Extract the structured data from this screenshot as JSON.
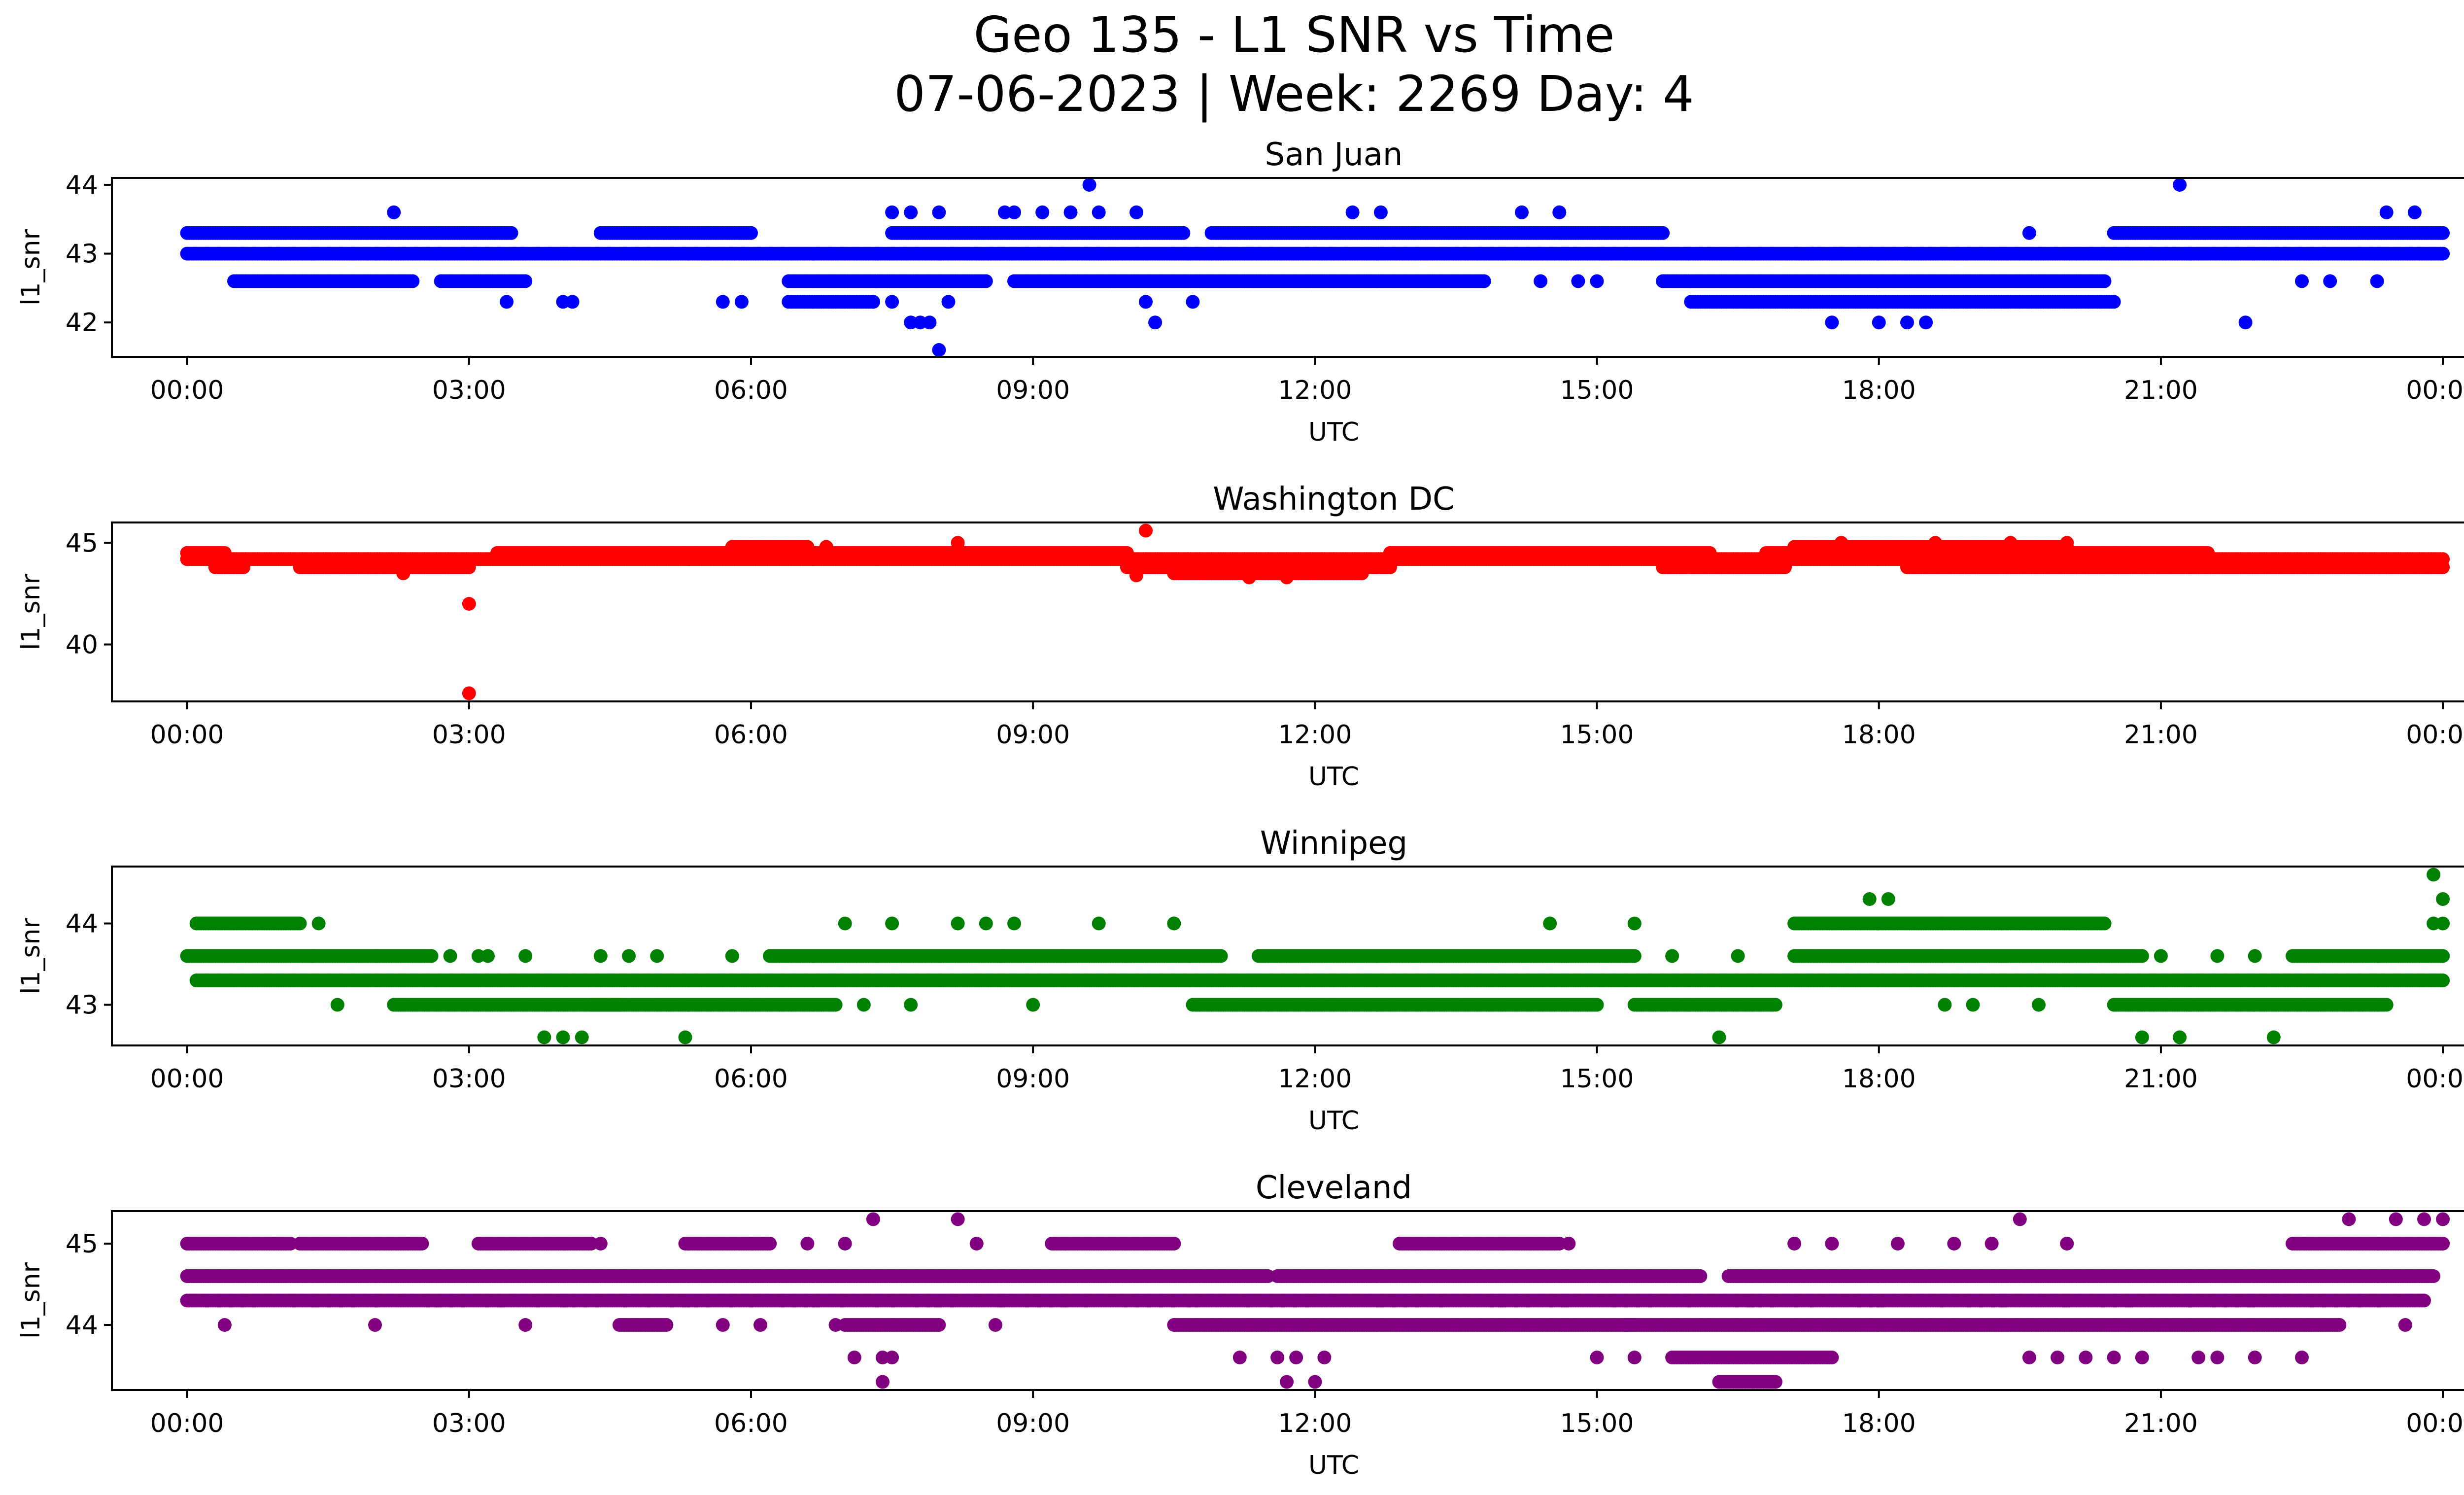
{
  "title_line1": "Geo 135 - L1 SNR vs Time",
  "title_line2": "07-06-2023 | Week: 2269 Day: 4",
  "chart_data": [
    {
      "type": "scatter",
      "title": "San Juan",
      "xlabel": "UTC",
      "ylabel": "l1_snr",
      "color": "#0000ff",
      "xlim": [
        -0.8,
        25.2
      ],
      "ylim": [
        41.5,
        44.1
      ],
      "xticks": [
        0,
        3,
        6,
        9,
        12,
        15,
        18,
        21,
        24
      ],
      "xticklabels": [
        "00:00",
        "03:00",
        "06:00",
        "09:00",
        "12:00",
        "15:00",
        "18:00",
        "21:00",
        "00:00"
      ],
      "yticks": [
        42,
        43,
        44
      ],
      "yticklabels": [
        "42",
        "43",
        "44"
      ],
      "bands": [
        {
          "y": 43.0,
          "from": 0.0,
          "to": 24.0
        },
        {
          "y": 43.3,
          "from": 0.0,
          "to": 3.45
        },
        {
          "y": 43.3,
          "from": 4.4,
          "to": 6.0
        },
        {
          "y": 43.3,
          "from": 7.5,
          "to": 10.6
        },
        {
          "y": 43.3,
          "from": 10.9,
          "to": 15.7
        },
        {
          "y": 43.3,
          "from": 20.5,
          "to": 24.0
        },
        {
          "y": 42.6,
          "from": 0.5,
          "to": 2.4
        },
        {
          "y": 42.6,
          "from": 2.7,
          "to": 3.6
        },
        {
          "y": 42.6,
          "from": 6.4,
          "to": 8.5
        },
        {
          "y": 42.6,
          "from": 8.8,
          "to": 13.8
        },
        {
          "y": 42.6,
          "from": 15.7,
          "to": 20.4
        },
        {
          "y": 42.3,
          "from": 6.4,
          "to": 7.3
        },
        {
          "y": 42.3,
          "from": 16.0,
          "to": 20.5
        }
      ],
      "points": [
        [
          2.2,
          43.6
        ],
        [
          3.4,
          42.3
        ],
        [
          4.0,
          42.3
        ],
        [
          4.1,
          42.3
        ],
        [
          5.7,
          42.3
        ],
        [
          5.9,
          42.3
        ],
        [
          7.3,
          42.3
        ],
        [
          7.5,
          42.3
        ],
        [
          7.7,
          42.0
        ],
        [
          7.8,
          42.0
        ],
        [
          7.9,
          42.0
        ],
        [
          8.0,
          41.6
        ],
        [
          8.1,
          42.3
        ],
        [
          7.5,
          43.6
        ],
        [
          7.7,
          43.6
        ],
        [
          8.0,
          43.6
        ],
        [
          8.7,
          43.6
        ],
        [
          8.8,
          43.6
        ],
        [
          9.1,
          43.6
        ],
        [
          9.4,
          43.6
        ],
        [
          9.6,
          44.0
        ],
        [
          9.7,
          43.6
        ],
        [
          10.1,
          43.6
        ],
        [
          10.2,
          42.3
        ],
        [
          10.3,
          42.0
        ],
        [
          10.7,
          42.3
        ],
        [
          12.4,
          43.6
        ],
        [
          12.7,
          43.6
        ],
        [
          14.2,
          43.6
        ],
        [
          14.6,
          43.6
        ],
        [
          14.4,
          42.6
        ],
        [
          14.8,
          42.6
        ],
        [
          15.0,
          42.6
        ],
        [
          17.3,
          43.0
        ],
        [
          17.5,
          42.0
        ],
        [
          17.6,
          43.0
        ],
        [
          18.0,
          42.0
        ],
        [
          18.3,
          43.0
        ],
        [
          18.3,
          42.0
        ],
        [
          18.5,
          42.0
        ],
        [
          19.6,
          43.3
        ],
        [
          21.2,
          44.0
        ],
        [
          21.9,
          42.0
        ],
        [
          22.5,
          42.6
        ],
        [
          22.8,
          42.6
        ],
        [
          23.3,
          42.6
        ],
        [
          23.4,
          43.6
        ],
        [
          23.7,
          43.6
        ]
      ]
    },
    {
      "type": "scatter",
      "title": "Washington DC",
      "xlabel": "UTC",
      "ylabel": "l1_snr",
      "color": "#ff0000",
      "xlim": [
        -0.8,
        25.2
      ],
      "ylim": [
        37.2,
        46.0
      ],
      "xticks": [
        0,
        3,
        6,
        9,
        12,
        15,
        18,
        21,
        24
      ],
      "xticklabels": [
        "00:00",
        "03:00",
        "06:00",
        "09:00",
        "12:00",
        "15:00",
        "18:00",
        "21:00",
        "00:00"
      ],
      "yticks": [
        40,
        45
      ],
      "yticklabels": [
        "40",
        "45"
      ],
      "bands": [
        {
          "y": 44.5,
          "from": 0.0,
          "to": 0.4
        },
        {
          "y": 44.2,
          "from": 0.0,
          "to": 24.0
        },
        {
          "y": 43.8,
          "from": 0.3,
          "to": 0.6
        },
        {
          "y": 43.8,
          "from": 1.2,
          "to": 3.0
        },
        {
          "y": 44.5,
          "from": 3.3,
          "to": 10.0
        },
        {
          "y": 44.8,
          "from": 5.8,
          "to": 6.6
        },
        {
          "y": 43.8,
          "from": 10.0,
          "to": 12.8
        },
        {
          "y": 43.5,
          "from": 10.5,
          "to": 12.5
        },
        {
          "y": 44.5,
          "from": 12.8,
          "to": 16.2
        },
        {
          "y": 43.8,
          "from": 15.7,
          "to": 17.0
        },
        {
          "y": 44.5,
          "from": 16.8,
          "to": 21.5
        },
        {
          "y": 44.8,
          "from": 17.1,
          "to": 20.0
        },
        {
          "y": 43.8,
          "from": 18.3,
          "to": 24.0
        }
      ],
      "points": [
        [
          2.3,
          43.5
        ],
        [
          3.0,
          42.0
        ],
        [
          3.0,
          37.6
        ],
        [
          10.2,
          45.6
        ],
        [
          10.1,
          43.4
        ],
        [
          11.3,
          43.3
        ],
        [
          11.7,
          43.3
        ],
        [
          6.8,
          44.8
        ],
        [
          8.2,
          45.0
        ],
        [
          17.6,
          45.0
        ],
        [
          18.6,
          45.0
        ],
        [
          19.4,
          45.0
        ],
        [
          20.0,
          45.0
        ]
      ]
    },
    {
      "type": "scatter",
      "title": "Winnipeg",
      "xlabel": "UTC",
      "ylabel": "l1_snr",
      "color": "#008000",
      "xlim": [
        -0.8,
        25.2
      ],
      "ylim": [
        42.5,
        44.7
      ],
      "xticks": [
        0,
        3,
        6,
        9,
        12,
        15,
        18,
        21,
        24
      ],
      "xticklabels": [
        "00:00",
        "03:00",
        "06:00",
        "09:00",
        "12:00",
        "15:00",
        "18:00",
        "21:00",
        "00:00"
      ],
      "yticks": [
        43,
        44
      ],
      "yticklabels": [
        "43",
        "44"
      ],
      "bands": [
        {
          "y": 43.6,
          "from": 0.0,
          "to": 2.6
        },
        {
          "y": 43.3,
          "from": 0.1,
          "to": 24.0
        },
        {
          "y": 44.0,
          "from": 0.1,
          "to": 1.2
        },
        {
          "y": 43.0,
          "from": 2.2,
          "to": 4.6
        },
        {
          "y": 43.0,
          "from": 4.3,
          "to": 6.9
        },
        {
          "y": 43.6,
          "from": 6.2,
          "to": 11.0
        },
        {
          "y": 43.6,
          "from": 11.4,
          "to": 15.4
        },
        {
          "y": 43.0,
          "from": 10.7,
          "to": 15.0
        },
        {
          "y": 43.0,
          "from": 15.4,
          "to": 16.9
        },
        {
          "y": 43.6,
          "from": 17.1,
          "to": 20.8
        },
        {
          "y": 44.0,
          "from": 17.1,
          "to": 20.4
        },
        {
          "y": 43.0,
          "from": 20.5,
          "to": 23.4
        },
        {
          "y": 43.6,
          "from": 22.4,
          "to": 24.0
        }
      ],
      "points": [
        [
          1.4,
          44.0
        ],
        [
          1.6,
          43.0
        ],
        [
          2.8,
          43.6
        ],
        [
          3.1,
          43.6
        ],
        [
          3.6,
          43.6
        ],
        [
          3.2,
          43.6
        ],
        [
          3.8,
          42.6
        ],
        [
          4.0,
          42.6
        ],
        [
          4.2,
          42.6
        ],
        [
          4.4,
          43.6
        ],
        [
          4.7,
          43.6
        ],
        [
          5.0,
          43.6
        ],
        [
          5.3,
          42.6
        ],
        [
          5.8,
          43.6
        ],
        [
          7.0,
          44.0
        ],
        [
          7.2,
          43.0
        ],
        [
          7.5,
          44.0
        ],
        [
          7.7,
          43.0
        ],
        [
          8.2,
          44.0
        ],
        [
          8.5,
          44.0
        ],
        [
          8.8,
          44.0
        ],
        [
          9.0,
          43.0
        ],
        [
          9.7,
          44.0
        ],
        [
          10.5,
          44.0
        ],
        [
          14.5,
          44.0
        ],
        [
          15.4,
          44.0
        ],
        [
          15.8,
          43.6
        ],
        [
          16.3,
          42.6
        ],
        [
          16.5,
          43.6
        ],
        [
          17.9,
          44.3
        ],
        [
          18.1,
          44.3
        ],
        [
          18.7,
          43.0
        ],
        [
          19.0,
          43.0
        ],
        [
          19.7,
          43.0
        ],
        [
          20.8,
          42.6
        ],
        [
          21.0,
          43.6
        ],
        [
          21.2,
          42.6
        ],
        [
          21.6,
          43.6
        ],
        [
          22.0,
          43.6
        ],
        [
          22.2,
          42.6
        ],
        [
          23.9,
          44.6
        ],
        [
          24.0,
          44.3
        ],
        [
          24.0,
          44.0
        ],
        [
          23.9,
          44.0
        ]
      ]
    },
    {
      "type": "scatter",
      "title": "Cleveland",
      "xlabel": "UTC",
      "ylabel": "l1_snr",
      "color": "#800080",
      "xlim": [
        -0.8,
        25.2
      ],
      "ylim": [
        43.2,
        45.4
      ],
      "xticks": [
        0,
        3,
        6,
        9,
        12,
        15,
        18,
        21,
        24
      ],
      "xticklabels": [
        "00:00",
        "03:00",
        "06:00",
        "09:00",
        "12:00",
        "15:00",
        "18:00",
        "21:00",
        "00:00"
      ],
      "yticks": [
        44,
        45
      ],
      "yticklabels": [
        "44",
        "45"
      ],
      "bands": [
        {
          "y": 44.6,
          "from": 0.0,
          "to": 11.5
        },
        {
          "y": 44.6,
          "from": 11.6,
          "to": 16.1
        },
        {
          "y": 44.6,
          "from": 16.4,
          "to": 23.9
        },
        {
          "y": 44.3,
          "from": 0.0,
          "to": 23.8
        },
        {
          "y": 45.0,
          "from": 0.0,
          "to": 1.1
        },
        {
          "y": 45.0,
          "from": 1.2,
          "to": 2.5
        },
        {
          "y": 45.0,
          "from": 3.1,
          "to": 4.3
        },
        {
          "y": 45.0,
          "from": 5.3,
          "to": 6.2
        },
        {
          "y": 45.0,
          "from": 9.2,
          "to": 10.5
        },
        {
          "y": 45.0,
          "from": 12.9,
          "to": 14.6
        },
        {
          "y": 45.0,
          "from": 22.4,
          "to": 24.0
        },
        {
          "y": 44.0,
          "from": 4.6,
          "to": 5.1
        },
        {
          "y": 44.0,
          "from": 7.0,
          "to": 8.0
        },
        {
          "y": 44.0,
          "from": 10.5,
          "to": 15.4
        },
        {
          "y": 44.0,
          "from": 15.3,
          "to": 22.9
        },
        {
          "y": 43.6,
          "from": 15.8,
          "to": 17.5
        },
        {
          "y": 43.3,
          "from": 16.3,
          "to": 16.9
        }
      ],
      "points": [
        [
          0.4,
          44.0
        ],
        [
          2.0,
          44.0
        ],
        [
          3.6,
          44.0
        ],
        [
          4.4,
          45.0
        ],
        [
          6.6,
          45.0
        ],
        [
          7.0,
          45.0
        ],
        [
          7.3,
          45.3
        ],
        [
          7.1,
          43.6
        ],
        [
          7.4,
          43.6
        ],
        [
          7.5,
          43.6
        ],
        [
          7.4,
          43.3
        ],
        [
          8.2,
          45.3
        ],
        [
          8.4,
          45.0
        ],
        [
          5.7,
          44.0
        ],
        [
          6.1,
          44.0
        ],
        [
          6.9,
          44.0
        ],
        [
          8.6,
          44.0
        ],
        [
          11.2,
          43.6
        ],
        [
          11.6,
          43.6
        ],
        [
          11.8,
          43.6
        ],
        [
          12.1,
          43.6
        ],
        [
          11.7,
          43.3
        ],
        [
          12.0,
          43.3
        ],
        [
          14.0,
          45.0
        ],
        [
          14.7,
          45.0
        ],
        [
          15.0,
          43.6
        ],
        [
          15.4,
          43.6
        ],
        [
          17.1,
          45.0
        ],
        [
          17.5,
          45.0
        ],
        [
          18.2,
          45.0
        ],
        [
          18.8,
          45.0
        ],
        [
          19.2,
          45.0
        ],
        [
          19.5,
          45.3
        ],
        [
          19.6,
          43.6
        ],
        [
          19.9,
          43.6
        ],
        [
          20.0,
          45.0
        ],
        [
          20.2,
          43.6
        ],
        [
          20.5,
          43.6
        ],
        [
          20.8,
          43.6
        ],
        [
          21.4,
          43.6
        ],
        [
          21.6,
          43.6
        ],
        [
          22.0,
          43.6
        ],
        [
          22.5,
          43.6
        ],
        [
          23.0,
          45.3
        ],
        [
          23.5,
          45.3
        ],
        [
          23.8,
          45.3
        ],
        [
          24.0,
          45.3
        ],
        [
          23.6,
          44.0
        ]
      ]
    }
  ]
}
